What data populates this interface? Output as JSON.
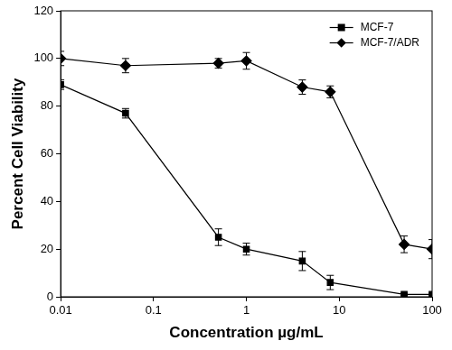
{
  "chart_data": {
    "type": "line",
    "x_label": "Concentration µg/mL",
    "y_label": "Percent Cell Viability",
    "x": [
      0.01,
      0.05,
      0.5,
      1,
      4,
      8,
      50,
      100
    ],
    "series": [
      {
        "name": "MCF-7",
        "color": "#000000",
        "marker": "square",
        "line_style": "solid",
        "values": [
          89,
          77,
          25,
          20,
          15,
          6,
          1,
          1
        ],
        "errors": [
          2,
          2,
          3.5,
          2.5,
          4,
          3,
          0.5,
          0.5
        ]
      },
      {
        "name": "MCF-7/ADR",
        "color": "#000000",
        "marker": "diamond",
        "line_style": "solid",
        "values": [
          100,
          97,
          98,
          99,
          88,
          86,
          22,
          20
        ],
        "errors": [
          3,
          3,
          2,
          3.5,
          3,
          2.5,
          3.5,
          4
        ]
      }
    ],
    "xlim": [
      0.01,
      100
    ],
    "xticks": [
      0.01,
      0.1,
      1,
      10,
      100
    ],
    "ylim": [
      0,
      120
    ],
    "yticks": [
      0,
      20,
      40,
      60,
      80,
      100,
      120
    ],
    "log": "x",
    "grid": false,
    "legend": "upper right"
  }
}
